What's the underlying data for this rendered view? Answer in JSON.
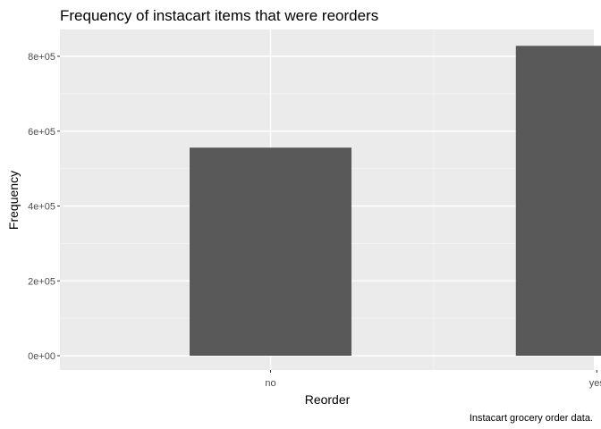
{
  "chart_data": {
    "type": "bar",
    "title": "Frequency of instacart items that were reorders",
    "xlabel": "Reorder",
    "ylabel": "Frequency",
    "caption": "Instacart grocery order data.",
    "categories": [
      "no",
      "yes"
    ],
    "values": [
      556000,
      828000
    ],
    "ylim": [
      0,
      860000
    ],
    "yticks": [
      {
        "value": 0,
        "label": "0e+00"
      },
      {
        "value": 200000,
        "label": "2e+05"
      },
      {
        "value": 400000,
        "label": "4e+05"
      },
      {
        "value": 600000,
        "label": "6e+05"
      },
      {
        "value": 800000,
        "label": "8e+05"
      }
    ],
    "grid": true,
    "colors": {
      "panel": "#ebebeb",
      "grid_major": "#ffffff",
      "bar": "#595959",
      "tick_text": "#4d4d4d",
      "text": "#000000"
    }
  }
}
